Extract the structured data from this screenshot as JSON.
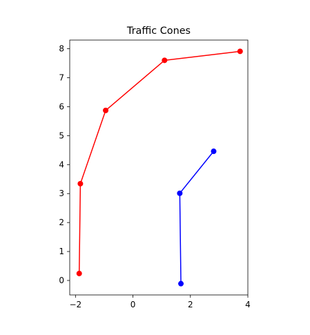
{
  "chart_data": {
    "type": "line",
    "title": "Traffic Cones",
    "xlabel": "",
    "ylabel": "",
    "xlim": [
      -2.2,
      4.0
    ],
    "ylim": [
      -0.5,
      8.3
    ],
    "xticks": [
      -2,
      0,
      2,
      4
    ],
    "yticks": [
      0,
      1,
      2,
      3,
      4,
      5,
      6,
      7,
      8
    ],
    "xtick_labels": [
      "−2",
      "0",
      "2",
      "4"
    ],
    "ytick_labels": [
      "0",
      "1",
      "2",
      "3",
      "4",
      "5",
      "6",
      "7",
      "8"
    ],
    "grid": false,
    "legend": "none",
    "series": [
      {
        "color": "#ff0000",
        "marker": "circle",
        "x": [
          -1.87,
          -1.83,
          -0.95,
          1.1,
          3.73
        ],
        "y": [
          0.24,
          3.34,
          5.87,
          7.6,
          7.91
        ]
      },
      {
        "color": "#0000ff",
        "marker": "circle",
        "x": [
          1.67,
          1.63,
          2.81
        ],
        "y": [
          -0.11,
          3.01,
          4.46
        ]
      }
    ]
  }
}
